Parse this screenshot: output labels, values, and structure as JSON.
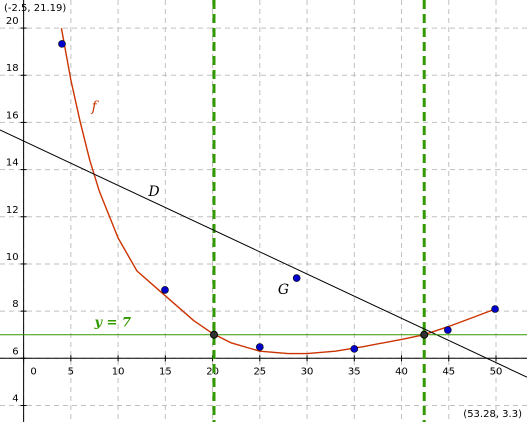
{
  "chart_data": {
    "type": "line",
    "corner_labels": [
      "(-2.5, 21.19)",
      "(53.28, 3.3)"
    ],
    "xlim": [
      -2.5,
      53.28
    ],
    "ylim": [
      3.3,
      21.19
    ],
    "xticks": [
      0,
      5,
      10,
      15,
      20,
      25,
      30,
      35,
      40,
      45,
      50
    ],
    "yticks": [
      4,
      6,
      8,
      10,
      12,
      14,
      16,
      18,
      20
    ],
    "grid": true,
    "series": [
      {
        "name": "f",
        "color": "#cc3300",
        "x": [
          4,
          5,
          6,
          7,
          8,
          10,
          12,
          14,
          16,
          18,
          20,
          22,
          25,
          28,
          30,
          33,
          36,
          40,
          42.4,
          45,
          48,
          50
        ],
        "values": [
          20,
          17.8,
          16,
          14.4,
          13.1,
          11.1,
          9.7,
          9,
          8.3,
          7.6,
          7.05,
          6.65,
          6.3,
          6.2,
          6.2,
          6.3,
          6.5,
          6.8,
          7,
          7.35,
          7.8,
          8.1
        ]
      },
      {
        "name": "D",
        "color": "#000000",
        "x": [
          -2.5,
          53.28
        ],
        "values": [
          15.68,
          5.2
        ]
      },
      {
        "name": "y = 7",
        "color": "#339900",
        "x": [
          -2.5,
          53.28
        ],
        "values": [
          7,
          7
        ]
      }
    ],
    "scatter": {
      "name": "G",
      "color": "#0000cc",
      "x": [
        4.06,
        14.96,
        25,
        28.9,
        35,
        44.9,
        49.9
      ],
      "values": [
        19.33,
        8.9,
        6.48,
        9.4,
        6.4,
        7.2,
        8.09
      ]
    },
    "intersections": {
      "color": "#333333",
      "x": [
        20.15,
        42.4
      ],
      "values": [
        7,
        7
      ]
    },
    "vlines": {
      "color": "#339900",
      "x": [
        20.15,
        42.4
      ]
    }
  }
}
